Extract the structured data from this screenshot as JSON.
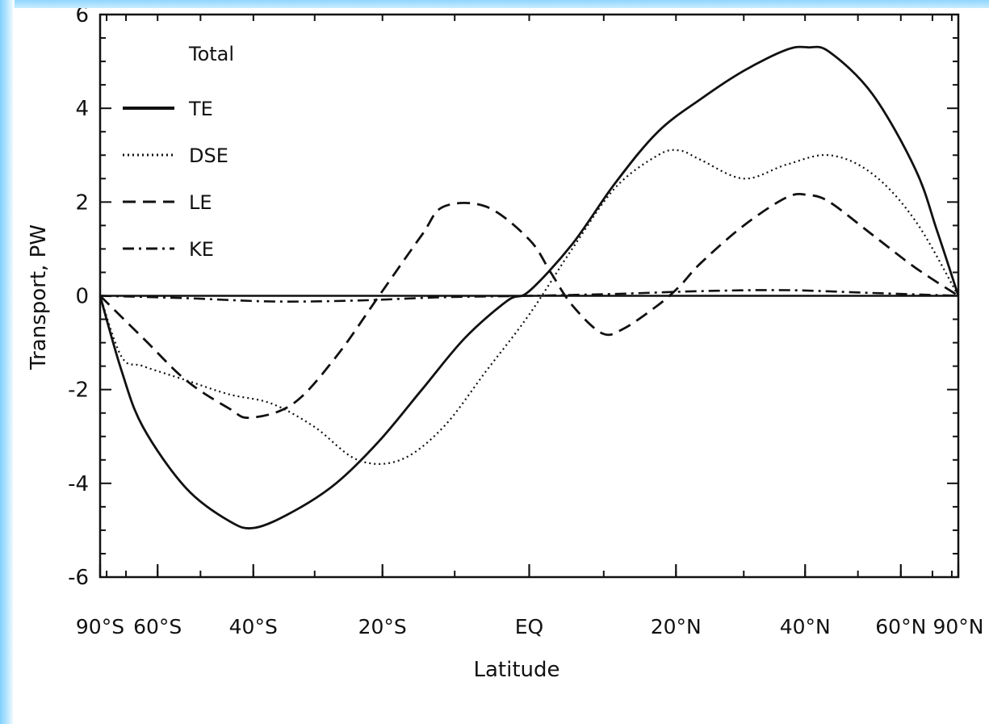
{
  "chart_data": {
    "type": "line",
    "title": "",
    "legend_title": "Total",
    "xlabel": "Latitude",
    "ylabel": "Transport, PW",
    "xlim": [
      -1,
      1
    ],
    "ylim": [
      -6,
      6
    ],
    "x_ticks": [
      {
        "value": -1.0,
        "label": "90°S"
      },
      {
        "value": -0.866,
        "label": "60°S"
      },
      {
        "value": -0.643,
        "label": "40°S"
      },
      {
        "value": -0.342,
        "label": "20°S"
      },
      {
        "value": 0.0,
        "label": "EQ"
      },
      {
        "value": 0.342,
        "label": "20°N"
      },
      {
        "value": 0.643,
        "label": "40°N"
      },
      {
        "value": 0.866,
        "label": "60°N"
      },
      {
        "value": 1.0,
        "label": "90°N"
      }
    ],
    "y_ticks": [
      -6,
      -4,
      -2,
      0,
      2,
      4,
      6
    ],
    "legend_position": "top-left",
    "series": [
      {
        "name": "TE",
        "dash": "solid",
        "x": [
          -1.0,
          -0.95,
          -0.9,
          -0.8,
          -0.7,
          -0.64,
          -0.55,
          -0.45,
          -0.35,
          -0.25,
          -0.15,
          -0.05,
          0.0,
          0.1,
          0.2,
          0.3,
          0.4,
          0.5,
          0.6,
          0.65,
          0.7,
          0.8,
          0.9,
          0.95,
          1.0
        ],
        "values": [
          0.0,
          -1.6,
          -2.8,
          -4.1,
          -4.8,
          -4.95,
          -4.6,
          -4.0,
          -3.1,
          -2.0,
          -0.9,
          -0.1,
          0.1,
          1.1,
          2.4,
          3.5,
          4.2,
          4.8,
          5.25,
          5.3,
          5.2,
          4.3,
          2.7,
          1.4,
          0.0
        ]
      },
      {
        "name": "DSE",
        "dash": "dotted",
        "x": [
          -1.0,
          -0.95,
          -0.9,
          -0.8,
          -0.7,
          -0.6,
          -0.5,
          -0.4,
          -0.3,
          -0.2,
          -0.1,
          0.0,
          0.1,
          0.2,
          0.3,
          0.35,
          0.4,
          0.5,
          0.6,
          0.7,
          0.8,
          0.9,
          1.0
        ],
        "values": [
          0.0,
          -1.3,
          -1.5,
          -1.8,
          -2.1,
          -2.3,
          -2.8,
          -3.5,
          -3.5,
          -2.8,
          -1.6,
          -0.4,
          1.0,
          2.3,
          3.0,
          3.1,
          2.9,
          2.5,
          2.8,
          3.0,
          2.6,
          1.6,
          0.0
        ]
      },
      {
        "name": "LE",
        "dash": "dashed",
        "x": [
          -1.0,
          -0.9,
          -0.8,
          -0.7,
          -0.65,
          -0.55,
          -0.45,
          -0.35,
          -0.25,
          -0.2,
          -0.1,
          0.0,
          0.05,
          0.1,
          0.17,
          0.22,
          0.3,
          0.35,
          0.4,
          0.5,
          0.6,
          0.65,
          0.7,
          0.8,
          0.9,
          1.0
        ],
        "values": [
          0.0,
          -0.9,
          -1.8,
          -2.4,
          -2.6,
          -2.3,
          -1.3,
          0.0,
          1.3,
          1.9,
          1.9,
          1.2,
          0.5,
          -0.2,
          -0.8,
          -0.7,
          -0.2,
          0.2,
          0.7,
          1.5,
          2.1,
          2.15,
          2.0,
          1.3,
          0.6,
          0.0
        ]
      },
      {
        "name": "KE",
        "dash": "dashdot",
        "x": [
          -1.0,
          -0.8,
          -0.6,
          -0.4,
          -0.2,
          0.0,
          0.2,
          0.4,
          0.6,
          0.8,
          1.0
        ],
        "values": [
          0.0,
          -0.05,
          -0.12,
          -0.1,
          -0.03,
          0.0,
          0.04,
          0.1,
          0.12,
          0.06,
          0.0
        ]
      }
    ]
  }
}
